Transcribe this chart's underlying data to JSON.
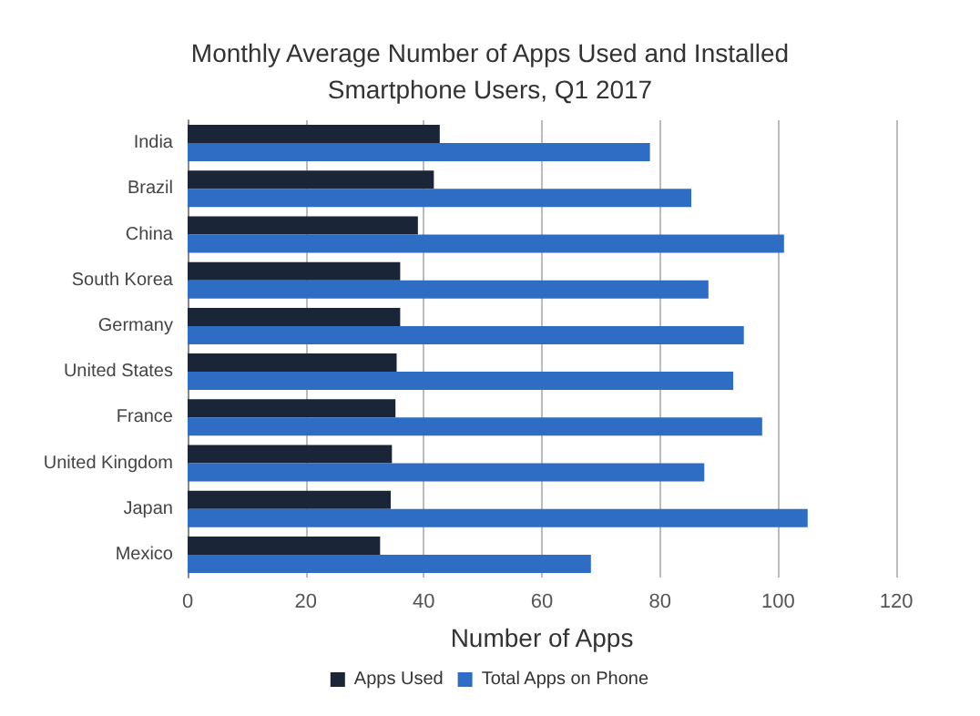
{
  "chart_data": {
    "type": "bar",
    "orientation": "horizontal",
    "title": "Monthly Average Number of Apps Used and Installed\nSmartphone Users, Q1 2017",
    "xlabel": "Number of Apps",
    "categories": [
      "India",
      "Brazil",
      "China",
      "South Korea",
      "Germany",
      "United States",
      "France",
      "United Kingdom",
      "Japan",
      "Mexico"
    ],
    "series": [
      {
        "name": "Apps Used",
        "color": "#1b2538",
        "values": [
          42.7,
          41.7,
          39,
          36,
          36,
          35.4,
          35.2,
          34.6,
          34.4,
          32.6
        ]
      },
      {
        "name": "Total Apps on Phone",
        "color": "#2f6dc5",
        "values": [
          78.3,
          85.3,
          101,
          88.2,
          94.2,
          92.4,
          97.3,
          87.5,
          105,
          68.3
        ]
      }
    ],
    "xlim": [
      0,
      120
    ],
    "xticks": [
      0,
      20,
      40,
      60,
      80,
      100,
      120
    ],
    "grid": "x",
    "legend": "bottom"
  }
}
